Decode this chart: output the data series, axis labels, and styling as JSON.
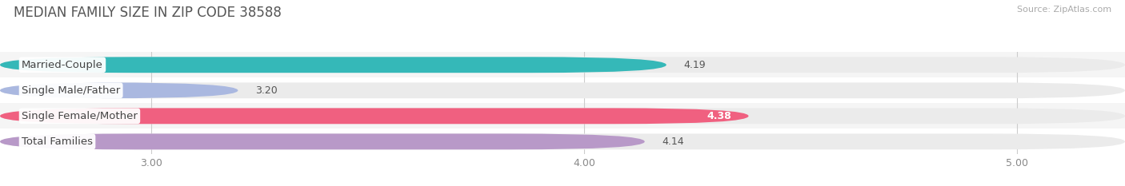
{
  "title": "MEDIAN FAMILY SIZE IN ZIP CODE 38588",
  "source": "Source: ZipAtlas.com",
  "categories": [
    "Married-Couple",
    "Single Male/Father",
    "Single Female/Mother",
    "Total Families"
  ],
  "values": [
    4.19,
    3.2,
    4.38,
    4.14
  ],
  "colors": [
    "#35b8b8",
    "#aab8e0",
    "#f06080",
    "#b899c8"
  ],
  "value_inside": [
    false,
    false,
    true,
    false
  ],
  "xlim_left": 2.65,
  "xlim_right": 5.25,
  "xticks": [
    3.0,
    4.0,
    5.0
  ],
  "xtick_labels": [
    "3.00",
    "4.00",
    "5.00"
  ],
  "bar_height": 0.62,
  "background_color": "#ffffff",
  "bar_bg_color": "#ebebeb",
  "row_bg_colors": [
    "#f5f5f5",
    "#ffffff",
    "#f5f5f5",
    "#ffffff"
  ],
  "title_fontsize": 12,
  "label_fontsize": 9.5,
  "value_fontsize": 9,
  "source_fontsize": 8
}
